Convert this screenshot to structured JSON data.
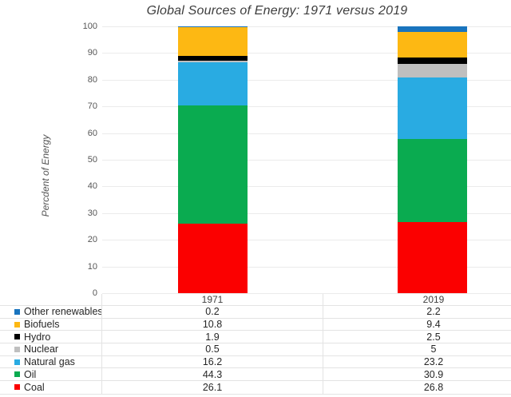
{
  "title": "Global Sources of Energy: 1971 versus 2019",
  "y_axis_label": "Percdent of Energy",
  "chart_data": {
    "type": "bar",
    "stacked": true,
    "title": "Global Sources of Energy: 1971 versus 2019",
    "xlabel": "",
    "ylabel": "Percdent of Energy",
    "categories": [
      "1971",
      "2019"
    ],
    "series": [
      {
        "name": "Other renewables",
        "color": "#1974BE",
        "values": [
          0.2,
          2.2
        ]
      },
      {
        "name": "Biofuels",
        "color": "#FDB813",
        "values": [
          10.8,
          9.4
        ]
      },
      {
        "name": "Hydro",
        "color": "#000000",
        "values": [
          1.9,
          2.5
        ]
      },
      {
        "name": "Nuclear",
        "color": "#BFBFBF",
        "values": [
          0.5,
          5
        ]
      },
      {
        "name": "Natural gas",
        "color": "#29ABE2",
        "values": [
          16.2,
          23.2
        ]
      },
      {
        "name": "Oil",
        "color": "#0AAB50",
        "values": [
          44.3,
          30.9
        ]
      },
      {
        "name": "Coal",
        "color": "#FB0000",
        "values": [
          26.1,
          26.8
        ]
      }
    ],
    "ylim": [
      0,
      100
    ],
    "yticks": [
      0,
      10,
      20,
      30,
      40,
      50,
      60,
      70,
      80,
      90,
      100
    ],
    "grid": true,
    "legend_position": "bottom-table"
  }
}
